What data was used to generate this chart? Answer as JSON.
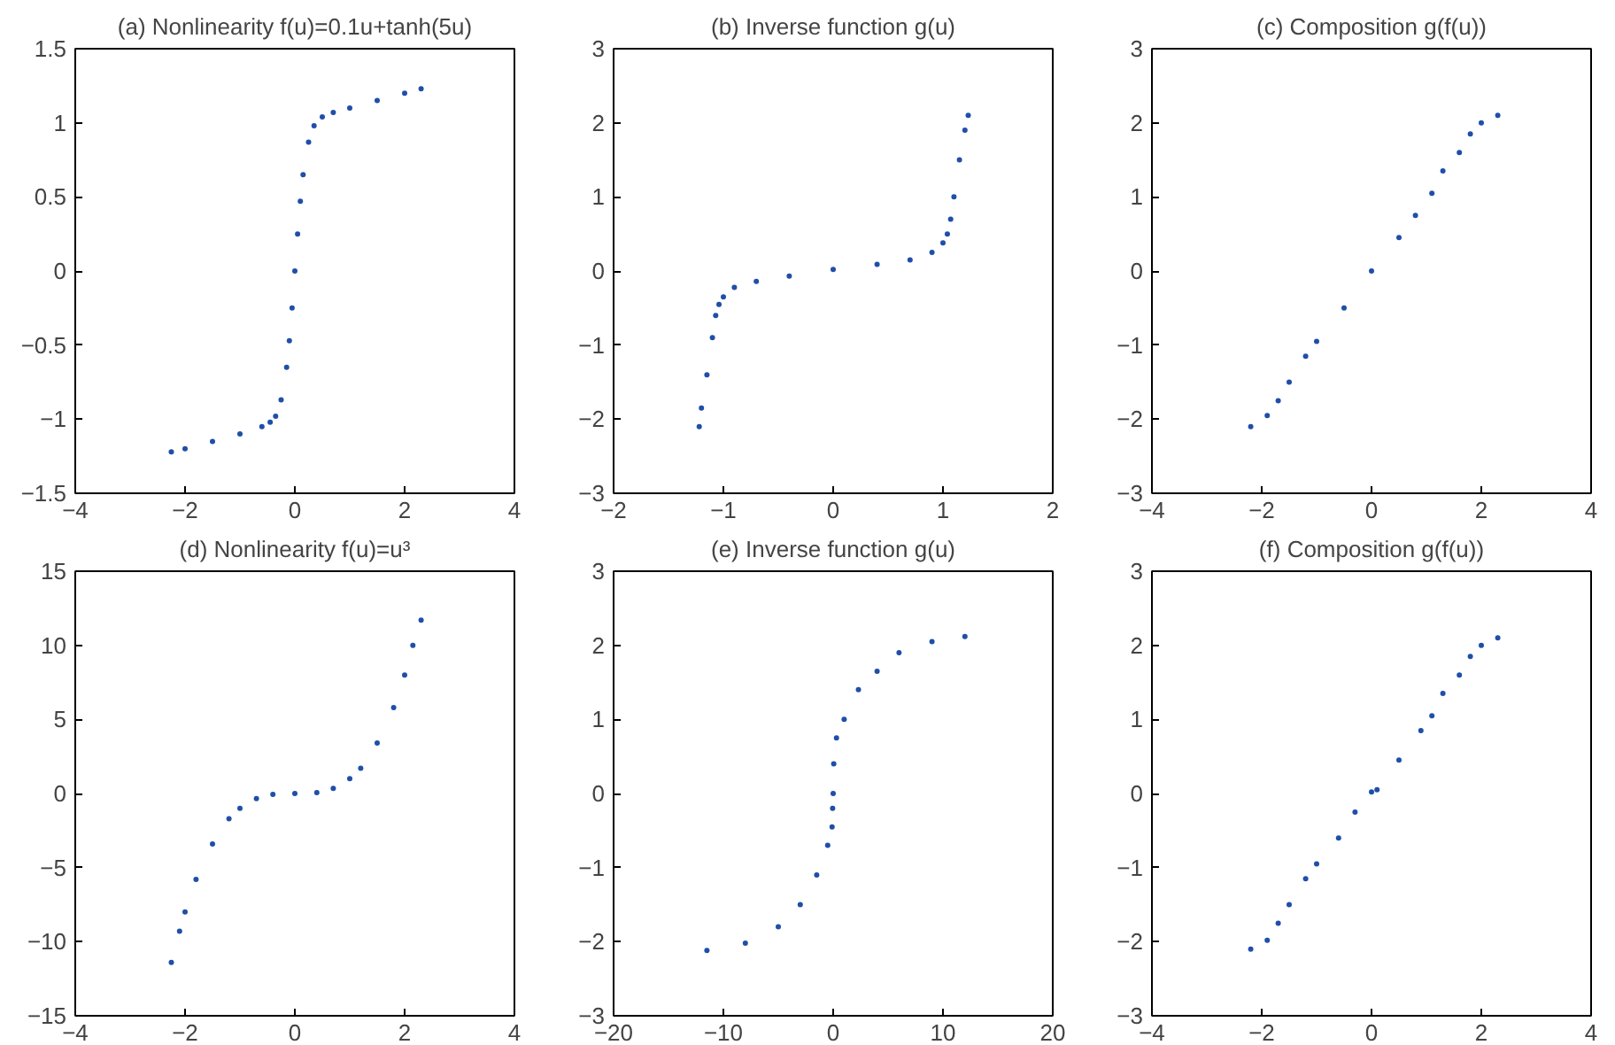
{
  "chart_data": [
    {
      "type": "scatter",
      "title": "(a) Nonlinearity f(u)=0.1u+tanh(5u)",
      "color": "#1f4fa8",
      "marker": "circle",
      "xlim": [
        -4,
        4
      ],
      "ylim": [
        -1.5,
        1.5
      ],
      "xticks": [
        -4,
        -2,
        0,
        2,
        4
      ],
      "yticks": [
        -1.5,
        -1,
        -0.5,
        0,
        0.5,
        1,
        1.5
      ],
      "x": [
        -2.25,
        -2.0,
        -1.5,
        -1.0,
        -0.6,
        -0.45,
        -0.35,
        -0.25,
        -0.15,
        -0.1,
        -0.05,
        0,
        0.05,
        0.1,
        0.15,
        0.25,
        0.35,
        0.5,
        0.7,
        1.0,
        1.5,
        2.0,
        2.3
      ],
      "values": [
        -1.22,
        -1.2,
        -1.15,
        -1.1,
        -1.05,
        -1.02,
        -0.98,
        -0.87,
        -0.65,
        -0.47,
        -0.25,
        0,
        0.25,
        0.47,
        0.65,
        0.87,
        0.98,
        1.04,
        1.07,
        1.1,
        1.15,
        1.2,
        1.23
      ]
    },
    {
      "type": "scatter",
      "title": "(b) Inverse function g(u)",
      "color": "#1f4fa8",
      "marker": "circle",
      "xlim": [
        -2,
        2
      ],
      "ylim": [
        -3,
        3
      ],
      "xticks": [
        -2,
        -1,
        0,
        1,
        2
      ],
      "yticks": [
        -3,
        -2,
        -1,
        0,
        1,
        2,
        3
      ],
      "x": [
        -1.22,
        -1.2,
        -1.15,
        -1.1,
        -1.07,
        -1.04,
        -1.0,
        -0.9,
        -0.7,
        -0.4,
        0,
        0.4,
        0.7,
        0.9,
        1.0,
        1.04,
        1.07,
        1.1,
        1.15,
        1.2,
        1.23
      ],
      "values": [
        -2.1,
        -1.85,
        -1.4,
        -0.9,
        -0.6,
        -0.45,
        -0.35,
        -0.22,
        -0.14,
        -0.07,
        0.02,
        0.09,
        0.15,
        0.25,
        0.38,
        0.5,
        0.7,
        1.0,
        1.5,
        1.9,
        2.1
      ]
    },
    {
      "type": "scatter",
      "title": "(c) Composition g(f(u))",
      "color": "#1f4fa8",
      "marker": "circle",
      "xlim": [
        -4,
        4
      ],
      "ylim": [
        -3,
        3
      ],
      "xticks": [
        -4,
        -2,
        0,
        2,
        4
      ],
      "yticks": [
        -3,
        -2,
        -1,
        0,
        1,
        2,
        3
      ],
      "x": [
        -2.2,
        -1.9,
        -1.7,
        -1.5,
        -1.2,
        -1.0,
        -0.5,
        0,
        0.5,
        0.8,
        1.1,
        1.3,
        1.6,
        1.8,
        2.0,
        2.3
      ],
      "values": [
        -2.1,
        -1.95,
        -1.75,
        -1.5,
        -1.15,
        -0.95,
        -0.5,
        0,
        0.45,
        0.75,
        1.05,
        1.35,
        1.6,
        1.85,
        2.0,
        2.1
      ]
    },
    {
      "type": "scatter",
      "title": "(d) Nonlinearity f(u)=u³",
      "color": "#1f4fa8",
      "marker": "circle",
      "xlim": [
        -4,
        4
      ],
      "ylim": [
        -15,
        15
      ],
      "xticks": [
        -4,
        -2,
        0,
        2,
        4
      ],
      "yticks": [
        -15,
        -10,
        -5,
        0,
        5,
        10,
        15
      ],
      "x": [
        -2.25,
        -2.1,
        -2.0,
        -1.8,
        -1.5,
        -1.2,
        -1.0,
        -0.7,
        -0.4,
        0,
        0.4,
        0.7,
        1.0,
        1.2,
        1.5,
        1.8,
        2.0,
        2.15,
        2.3
      ],
      "values": [
        -11.4,
        -9.3,
        -8,
        -5.8,
        -3.4,
        -1.7,
        -1.0,
        -0.34,
        -0.06,
        0,
        0.06,
        0.34,
        1.0,
        1.7,
        3.4,
        5.8,
        8,
        10,
        11.7
      ]
    },
    {
      "type": "scatter",
      "title": "(e) Inverse function g(u)",
      "color": "#1f4fa8",
      "marker": "circle",
      "xlim": [
        -20,
        20
      ],
      "ylim": [
        -3,
        3
      ],
      "xticks": [
        -20,
        -10,
        0,
        10,
        20
      ],
      "yticks": [
        -3,
        -2,
        -1,
        0,
        1,
        2,
        3
      ],
      "x": [
        -11.5,
        -8,
        -5,
        -3,
        -1.5,
        -0.5,
        -0.1,
        -0.05,
        0,
        0.05,
        0.3,
        1,
        2.3,
        4,
        6,
        9,
        12
      ],
      "values": [
        -2.12,
        -2.02,
        -1.8,
        -1.5,
        -1.1,
        -0.7,
        -0.45,
        -0.2,
        0,
        0.4,
        0.75,
        1.0,
        1.4,
        1.65,
        1.9,
        2.05,
        2.12
      ]
    },
    {
      "type": "scatter",
      "title": "(f) Composition g(f(u))",
      "color": "#1f4fa8",
      "marker": "circle",
      "xlim": [
        -4,
        4
      ],
      "ylim": [
        -3,
        3
      ],
      "xticks": [
        -4,
        -2,
        0,
        2,
        4
      ],
      "yticks": [
        -3,
        -2,
        -1,
        0,
        1,
        2,
        3
      ],
      "x": [
        -2.2,
        -1.9,
        -1.7,
        -1.5,
        -1.2,
        -1.0,
        -0.6,
        -0.3,
        0,
        0.1,
        0.5,
        0.9,
        1.1,
        1.3,
        1.6,
        1.8,
        2.0,
        2.3
      ],
      "values": [
        -2.1,
        -1.98,
        -1.75,
        -1.5,
        -1.15,
        -0.95,
        -0.6,
        -0.25,
        0.02,
        0.05,
        0.45,
        0.85,
        1.05,
        1.35,
        1.6,
        1.85,
        2.0,
        2.1
      ]
    }
  ]
}
